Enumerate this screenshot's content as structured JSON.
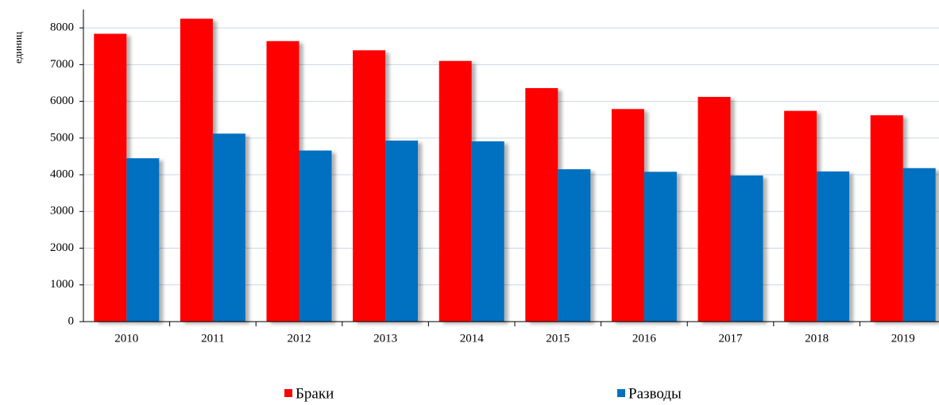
{
  "chart_data": {
    "type": "bar",
    "y_label": "единиц",
    "categories": [
      "2010",
      "2011",
      "2012",
      "2013",
      "2014",
      "2015",
      "2016",
      "2017",
      "2018",
      "2019"
    ],
    "series": [
      {
        "name": "Браки",
        "color": "#ff0000",
        "values": [
          7840,
          8250,
          7640,
          7390,
          7100,
          6360,
          5790,
          6120,
          5740,
          5620
        ]
      },
      {
        "name": "Разводы",
        "color": "#0070c0",
        "values": [
          4450,
          5120,
          4660,
          4930,
          4910,
          4150,
          4080,
          3980,
          4090,
          4180
        ]
      }
    ],
    "ylim": [
      0,
      8500
    ],
    "yticks": [
      0,
      1000,
      2000,
      3000,
      4000,
      5000,
      6000,
      7000,
      8000
    ],
    "grid": true
  }
}
